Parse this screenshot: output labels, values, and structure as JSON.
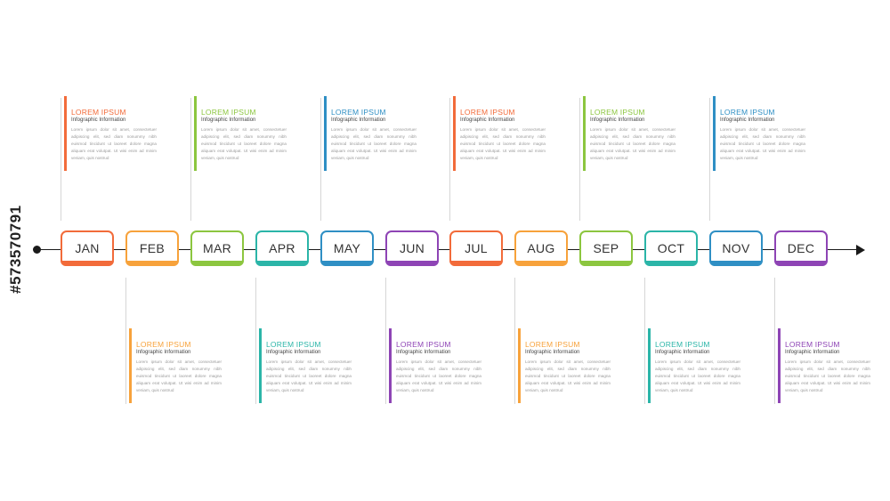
{
  "timeline": {
    "months": [
      {
        "label": "JAN",
        "color": "#F26B3A"
      },
      {
        "label": "FEB",
        "color": "#F7A23B"
      },
      {
        "label": "MAR",
        "color": "#8CC63F"
      },
      {
        "label": "APR",
        "color": "#2BB5A8"
      },
      {
        "label": "MAY",
        "color": "#2F8FC4"
      },
      {
        "label": "JUN",
        "color": "#8E44B5"
      },
      {
        "label": "JUL",
        "color": "#F26B3A"
      },
      {
        "label": "AUG",
        "color": "#F7A23B"
      },
      {
        "label": "SEP",
        "color": "#8CC63F"
      },
      {
        "label": "OCT",
        "color": "#2BB5A8"
      },
      {
        "label": "NOV",
        "color": "#2F8FC4"
      },
      {
        "label": "DEC",
        "color": "#8E44B5"
      }
    ]
  },
  "cards": [
    {
      "month": "JAN",
      "position": "top",
      "title": "LOREM IPSUM",
      "subtitle": "Infographic Information",
      "color": "#F26B3A",
      "body": "Lorem ipsum dolor sit amet, consectetuer adipiscing elit, sed diam nonummy nibh euismod tincidunt ut laoreet dolore magna aliquam erat volutpat. Ut wisi enim ad minim veniam, quis nostrud"
    },
    {
      "month": "MAR",
      "position": "top",
      "title": "LOREM IPSUM",
      "subtitle": "Infographic Information",
      "color": "#8CC63F",
      "body": "Lorem ipsum dolor sit amet, consectetuer adipiscing elit, sed diam nonummy nibh euismod tincidunt ut laoreet dolore magna aliquam erat volutpat. Ut wisi enim ad minim veniam, quis nostrud"
    },
    {
      "month": "MAY",
      "position": "top",
      "title": "LOREM IPSUM",
      "subtitle": "Infographic Information",
      "color": "#2F8FC4",
      "body": "Lorem ipsum dolor sit amet, consectetuer adipiscing elit, sed diam nonummy nibh euismod tincidunt ut laoreet dolore magna aliquam erat volutpat. Ut wisi enim ad minim veniam, quis nostrud"
    },
    {
      "month": "JUL",
      "position": "top",
      "title": "LOREM IPSUM",
      "subtitle": "Infographic Information",
      "color": "#F26B3A",
      "body": "Lorem ipsum dolor sit amet, consectetuer adipiscing elit, sed diam nonummy nibh euismod tincidunt ut laoreet dolore magna aliquam erat volutpat. Ut wisi enim ad minim veniam, quis nostrud"
    },
    {
      "month": "SEP",
      "position": "top",
      "title": "LOREM IPSUM",
      "subtitle": "Infographic Information",
      "color": "#8CC63F",
      "body": "Lorem ipsum dolor sit amet, consectetuer adipiscing elit, sed diam nonummy nibh euismod tincidunt ut laoreet dolore magna aliquam erat volutpat. Ut wisi enim ad minim veniam, quis nostrud"
    },
    {
      "month": "NOV",
      "position": "top",
      "title": "LOREM IPSUM",
      "subtitle": "Infographic Information",
      "color": "#2F8FC4",
      "body": "Lorem ipsum dolor sit amet, consectetuer adipiscing elit, sed diam nonummy nibh euismod tincidunt ut laoreet dolore magna aliquam erat volutpat. Ut wisi enim ad minim veniam, quis nostrud"
    },
    {
      "month": "FEB",
      "position": "bottom",
      "title": "LOREM IPSUM",
      "subtitle": "Infographic Information",
      "color": "#F7A23B",
      "body": "Lorem ipsum dolor sit amet, consectetuer adipiscing elit, sed diam nonummy nibh euismod tincidunt ut laoreet dolore magna aliquam erat volutpat. Ut wisi enim ad minim veniam, quis nostrud"
    },
    {
      "month": "APR",
      "position": "bottom",
      "title": "LOREM IPSUM",
      "subtitle": "Infographic Information",
      "color": "#2BB5A8",
      "body": "Lorem ipsum dolor sit amet, consectetuer adipiscing elit, sed diam nonummy nibh euismod tincidunt ut laoreet dolore magna aliquam erat volutpat. Ut wisi enim ad minim veniam, quis nostrud"
    },
    {
      "month": "JUN",
      "position": "bottom",
      "title": "LOREM IPSUM",
      "subtitle": "Infographic Information",
      "color": "#8E44B5",
      "body": "Lorem ipsum dolor sit amet, consectetuer adipiscing elit, sed diam nonummy nibh euismod tincidunt ut laoreet dolore magna aliquam erat volutpat. Ut wisi enim ad minim veniam, quis nostrud"
    },
    {
      "month": "AUG",
      "position": "bottom",
      "title": "LOREM IPSUM",
      "subtitle": "Infographic Information",
      "color": "#F7A23B",
      "body": "Lorem ipsum dolor sit amet, consectetuer adipiscing elit, sed diam nonummy nibh euismod tincidunt ut laoreet dolore magna aliquam erat volutpat. Ut wisi enim ad minim veniam, quis nostrud"
    },
    {
      "month": "OCT",
      "position": "bottom",
      "title": "LOREM IPSUM",
      "subtitle": "Infographic Information",
      "color": "#2BB5A8",
      "body": "Lorem ipsum dolor sit amet, consectetuer adipiscing elit, sed diam nonummy nibh euismod tincidunt ut laoreet dolore magna aliquam erat volutpat. Ut wisi enim ad minim veniam, quis nostrud"
    },
    {
      "month": "DEC",
      "position": "bottom",
      "title": "LOREM IPSUM",
      "subtitle": "Infographic Information",
      "color": "#8E44B5",
      "body": "Lorem ipsum dolor sit amet, consectetuer adipiscing elit, sed diam nonummy nibh euismod tincidunt ut laoreet dolore magna aliquam erat volutpat. Ut wisi enim ad minim veniam, quis nostrud"
    }
  ],
  "stock_id": "#573570791"
}
